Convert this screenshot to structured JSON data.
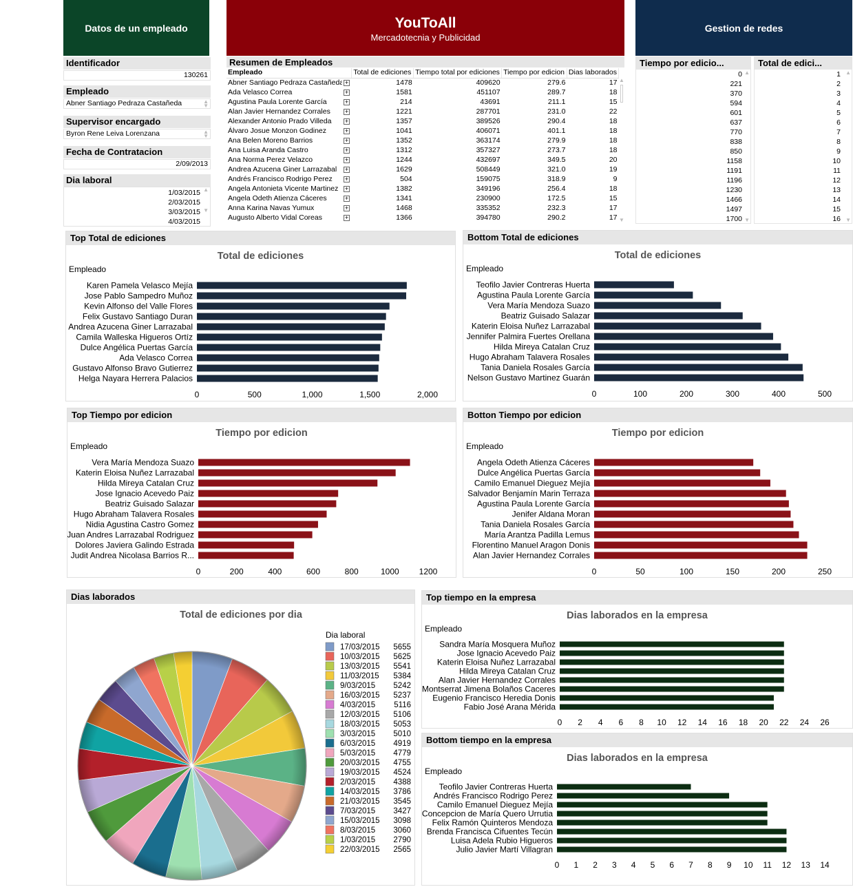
{
  "headers": {
    "left": "Datos de un empleado",
    "center_title": "YouToAll",
    "center_subtitle": "Mercadotecnia y Publicidad",
    "right": "Gestion de redes"
  },
  "colors": {
    "green_header": "#0b4528",
    "red_header": "#8a0008",
    "navy_header": "#0f2c4d",
    "bar_navy": "#1b2a3e",
    "bar_red": "#8a1218",
    "bar_green": "#0c2d12"
  },
  "employee": {
    "id_label": "Identificador",
    "id_value": "130261",
    "name_label": "Empleado",
    "name_value": "Abner Santiago Pedraza Castañeda",
    "supervisor_label": "Supervisor encargado",
    "supervisor_value": "Byron Rene Leiva Lorenzana",
    "hire_label": "Fecha de Contratacion",
    "hire_value": "2/09/2013",
    "day_label": "Dia laboral",
    "days": [
      "1/03/2015",
      "2/03/2015",
      "3/03/2015",
      "4/03/2015"
    ]
  },
  "summary": {
    "title": "Resumen de Empleados",
    "columns": [
      "Empleado",
      "Total de ediciones",
      "Tiempo total por ediciones",
      "Tiempo por edicion",
      "Dias laborados"
    ],
    "rows": [
      [
        "Abner Santiago Pedraza Castañeda",
        "1478",
        "409620",
        "279.6",
        "17"
      ],
      [
        "Ada Velasco Correa",
        "1581",
        "451107",
        "289.7",
        "18"
      ],
      [
        "Agustina Paula Lorente García",
        "214",
        "43691",
        "211.1",
        "15"
      ],
      [
        "Alan Javier Hernandez Corrales",
        "1221",
        "287701",
        "231.0",
        "22"
      ],
      [
        "Alexander Antonio Prado Villeda",
        "1357",
        "389526",
        "290.4",
        "18"
      ],
      [
        "Álvaro Josue Monzon Godinez",
        "1041",
        "406071",
        "401.1",
        "18"
      ],
      [
        "Ana Belen Moreno Barrios",
        "1352",
        "363174",
        "279.9",
        "18"
      ],
      [
        "Ana Luisa Aranda Castro",
        "1312",
        "357327",
        "273.7",
        "18"
      ],
      [
        "Ana Norma Perez Velazco",
        "1244",
        "432697",
        "349.5",
        "20"
      ],
      [
        "Andrea Azucena Giner Larrazabal",
        "1629",
        "508449",
        "321.0",
        "19"
      ],
      [
        "Andrés Francisco Rodrigo Perez",
        "504",
        "159075",
        "318.9",
        "9"
      ],
      [
        "Angela Antonieta Vicente Martinez",
        "1382",
        "349196",
        "256.4",
        "18"
      ],
      [
        "Angela Odeth Atienza Cáceres",
        "1341",
        "230900",
        "172.5",
        "15"
      ],
      [
        "Anna Karina Navas Yumux",
        "1468",
        "335352",
        "232.3",
        "17"
      ],
      [
        "Augusto Alberto Vidal Coreas",
        "1366",
        "394780",
        "290.2",
        "17"
      ]
    ]
  },
  "lists": {
    "tiempo_title": "Tiempo por edicio...",
    "tiempo_values": [
      "0",
      "221",
      "370",
      "594",
      "601",
      "637",
      "770",
      "838",
      "850",
      "1158",
      "1191",
      "1196",
      "1230",
      "1466",
      "1497",
      "1700"
    ],
    "total_title": "Total de edici...",
    "total_values": [
      "1",
      "2",
      "3",
      "4",
      "5",
      "6",
      "7",
      "8",
      "9",
      "10",
      "11",
      "12",
      "13",
      "14",
      "15",
      "16"
    ]
  },
  "chart_data": [
    {
      "id": "top_total",
      "panel_title": "Top Total de ediciones",
      "type": "bar",
      "orientation": "horizontal",
      "title": "Total de ediciones",
      "ylabel": "Empleado",
      "categories": [
        "Karen Pamela Velasco Mejía",
        "Jose Pablo Sampedro Muñoz",
        "Kevin Alfonso del Valle Flores",
        "Felix Gustavo Santiago Duran",
        "Andrea Azucena Giner Larrazabal",
        "Camila Walleska Higueros Ortíz",
        "Dulce Angélica Puertas García",
        "Ada Velasco Correa",
        "Gustavo Alfonso Bravo Gutierrez",
        "Helga Nayara Herrera Palacios"
      ],
      "values": [
        1820,
        1815,
        1670,
        1640,
        1629,
        1605,
        1590,
        1581,
        1575,
        1568
      ],
      "xlim": [
        0,
        2000
      ],
      "ticks": [
        0,
        500,
        1000,
        1500,
        2000
      ],
      "tick_labels": [
        "0",
        "500",
        "1,000",
        "1,500",
        "2,000"
      ],
      "color": "#1b2a3e"
    },
    {
      "id": "bottom_total",
      "panel_title": "Bottom Total de ediciones",
      "type": "bar",
      "orientation": "horizontal",
      "title": "Total de ediciones",
      "ylabel": "Empleado",
      "categories": [
        "Teofilo Javier Contreras Huerta",
        "Agustina Paula Lorente García",
        "Vera María Mendoza Suazo",
        "Beatriz Guisado Salazar",
        "Katerin Eloisa Nuñez Larrazabal",
        "Jennifer Palmira Fuertes Orellana",
        "Hilda Mireya Catalan Cruz",
        "Hugo Abraham Talavera Rosales",
        "Tania Daniela Rosales García",
        "Nelson Gustavo Martinez Guarán"
      ],
      "values": [
        173,
        214,
        275,
        322,
        362,
        388,
        405,
        421,
        452,
        454
      ],
      "xlim": [
        0,
        500
      ],
      "ticks": [
        0,
        100,
        200,
        300,
        400,
        500
      ],
      "tick_labels": [
        "0",
        "100",
        "200",
        "300",
        "400",
        "500"
      ],
      "color": "#1b2a3e"
    },
    {
      "id": "top_tiempo",
      "panel_title": "Top Tiempo por edicion",
      "type": "bar",
      "orientation": "horizontal",
      "title": "Tiempo por edicion",
      "ylabel": "Empleado",
      "categories": [
        "Vera María Mendoza Suazo",
        "Katerin Eloisa Nuñez Larrazabal",
        "Hilda Mireya Catalan Cruz",
        "Jose Ignacio Acevedo Paiz",
        "Beatriz Guisado Salazar",
        "Hugo Abraham Talavera Rosales",
        "Nidia Agustina Castro Gomez",
        "Juan Andres Larrazabal Rodriguez",
        "Dolores Javiera Galindo Estrada",
        "Judit Andrea Nicolasa Barrios R..."
      ],
      "values": [
        1105,
        1030,
        935,
        730,
        720,
        670,
        625,
        595,
        500,
        498
      ],
      "xlim": [
        0,
        1200
      ],
      "ticks": [
        0,
        200,
        400,
        600,
        800,
        1000,
        1200
      ],
      "tick_labels": [
        "0",
        "200",
        "400",
        "600",
        "800",
        "1000",
        "1200"
      ],
      "color": "#8a1218"
    },
    {
      "id": "bottom_tiempo",
      "panel_title": "Botton Tiempo por edicion",
      "type": "bar",
      "orientation": "horizontal",
      "title": "Tiempo por edicion",
      "ylabel": "Empleado",
      "categories": [
        "Angela Odeth Atienza Cáceres",
        "Dulce Angélica Puertas García",
        "Camilo Emanuel Dieguez Mejía",
        "Salvador Benjamín Marin Terraza",
        "Agustina Paula Lorente García",
        "Jenifer Aldana Moran",
        "Tania Daniela Rosales García",
        "María Arantza Padilla Lemus",
        "Florentino Manuel Aragon Donis",
        "Alan Javier Hernandez Corrales"
      ],
      "values": [
        172.5,
        180,
        191,
        208,
        211.1,
        213,
        216,
        222,
        231,
        231
      ],
      "xlim": [
        0,
        250
      ],
      "ticks": [
        0,
        50,
        100,
        150,
        200,
        250
      ],
      "tick_labels": [
        "0",
        "50",
        "100",
        "150",
        "200",
        "250"
      ],
      "color": "#8a1218"
    },
    {
      "id": "pie",
      "panel_title": "Dias laborados",
      "type": "pie",
      "title": "Total de ediciones por dia",
      "legend_title": "Dia laboral",
      "categories": [
        "17/03/2015",
        "10/03/2015",
        "13/03/2015",
        "11/03/2015",
        "9/03/2015",
        "16/03/2015",
        "4/03/2015",
        "12/03/2015",
        "18/03/2015",
        "3/03/2015",
        "6/03/2015",
        "5/03/2015",
        "20/03/2015",
        "19/03/2015",
        "2/03/2015",
        "14/03/2015",
        "21/03/2015",
        "7/03/2015",
        "15/03/2015",
        "8/03/2015",
        "1/03/2015",
        "22/03/2015"
      ],
      "values": [
        5655,
        5625,
        5541,
        5384,
        5242,
        5237,
        5116,
        5106,
        5053,
        5010,
        4919,
        4779,
        4755,
        4524,
        4388,
        3786,
        3545,
        3427,
        3098,
        3060,
        2790,
        2565
      ],
      "colors": [
        "#7f9bc8",
        "#e8655a",
        "#b8ca4a",
        "#f2c93a",
        "#5bb286",
        "#e4a98a",
        "#d77bd2",
        "#a8a8a8",
        "#a7d8df",
        "#9ee0b0",
        "#1a6e8e",
        "#f0a6bd",
        "#4f9a3c",
        "#b9a9d6",
        "#b3202a",
        "#10a3a3",
        "#c86a2a",
        "#5c4b8e",
        "#8fa6cf",
        "#f07360",
        "#b8d048",
        "#f4cf33"
      ]
    },
    {
      "id": "top_dias",
      "panel_title": "Top tiempo en la empresa",
      "type": "bar",
      "orientation": "horizontal",
      "title": "Dias laborados en la empresa",
      "ylabel": "Empleado",
      "categories": [
        "Sandra María Mosquera Muñoz",
        "Jose Ignacio Acevedo Paiz",
        "Katerin Eloisa Nuñez Larrazabal",
        "Hilda Mireya Catalan Cruz",
        "Alan Javier Hernandez Corrales",
        "Montserrat Jimena Bolaños Caceres",
        "Eugenio Francisco Heredia Donis",
        "Fabio José Arana Mérida"
      ],
      "values": [
        22,
        22,
        22,
        22,
        22,
        22,
        21,
        21
      ],
      "xlim": [
        0,
        26
      ],
      "ticks": [
        0,
        2,
        4,
        6,
        8,
        10,
        12,
        14,
        16,
        18,
        20,
        22,
        24,
        26
      ],
      "tick_labels": [
        "0",
        "2",
        "4",
        "6",
        "8",
        "10",
        "12",
        "14",
        "16",
        "18",
        "20",
        "22",
        "24",
        "26"
      ],
      "color": "#0c2d12"
    },
    {
      "id": "bottom_dias",
      "panel_title": "Bottom tiempo en la empresa",
      "type": "bar",
      "orientation": "horizontal",
      "title": "Dias laborados en la empresa",
      "ylabel": "Empleado",
      "categories": [
        "Teofilo Javier Contreras Huerta",
        "Andrés Francisco Rodrigo Perez",
        "Camilo Emanuel Dieguez Mejía",
        "Concepcion de María Quero Urrutia",
        "Felix Ramón Quinteros Mendoza",
        "Brenda Francisca Cifuentes Tecún",
        "Luisa Adela Rubio Higueros",
        "Julio Javier Martí Villagran"
      ],
      "values": [
        7,
        9,
        11,
        11,
        11,
        12,
        12,
        12
      ],
      "xlim": [
        0,
        14
      ],
      "ticks": [
        0,
        1,
        2,
        3,
        4,
        5,
        6,
        7,
        8,
        9,
        10,
        11,
        12,
        13,
        14
      ],
      "tick_labels": [
        "0",
        "1",
        "2",
        "3",
        "4",
        "5",
        "6",
        "7",
        "8",
        "9",
        "10",
        "11",
        "12",
        "13",
        "14"
      ],
      "color": "#0c2d12"
    }
  ]
}
